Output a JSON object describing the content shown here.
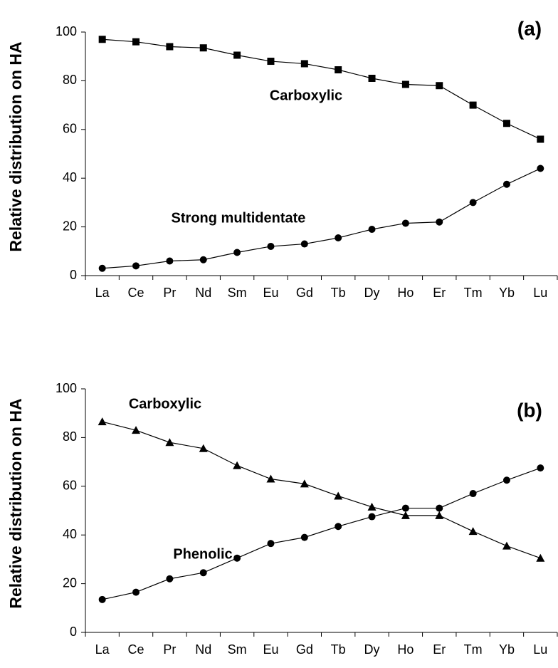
{
  "chart_data": [
    {
      "type": "line",
      "panel_label": "(a)",
      "ylabel": "Relative distribution on HA",
      "categories": [
        "La",
        "Ce",
        "Pr",
        "Nd",
        "Sm",
        "Eu",
        "Gd",
        "Tb",
        "Dy",
        "Ho",
        "Er",
        "Tm",
        "Yb",
        "Lu"
      ],
      "ylim": [
        0,
        100
      ],
      "yticks": [
        0,
        20,
        40,
        60,
        80,
        100
      ],
      "series": [
        {
          "name": "Carboxylic",
          "color": "#000000",
          "marker": "square",
          "values": [
            97,
            96,
            94,
            93.5,
            90.5,
            88,
            87,
            84.5,
            81,
            78.5,
            78,
            70,
            62.5,
            56
          ]
        },
        {
          "name": "Strong multidentate",
          "color": "#000000",
          "marker": "circle",
          "values": [
            3,
            4,
            6,
            6.5,
            9.5,
            12,
            13,
            15.5,
            19,
            21.5,
            22,
            30,
            37.5,
            44
          ]
        }
      ]
    },
    {
      "type": "line",
      "panel_label": "(b)",
      "ylabel": "Relative distribution on HA",
      "categories": [
        "La",
        "Ce",
        "Pr",
        "Nd",
        "Sm",
        "Eu",
        "Gd",
        "Tb",
        "Dy",
        "Ho",
        "Er",
        "Tm",
        "Yb",
        "Lu"
      ],
      "ylim": [
        0,
        100
      ],
      "yticks": [
        0,
        20,
        40,
        60,
        80,
        100
      ],
      "series": [
        {
          "name": "Carboxylic",
          "color": "#000000",
          "marker": "triangle",
          "values": [
            86.5,
            83,
            78,
            75.5,
            68.5,
            63,
            61,
            56,
            51.5,
            48,
            48,
            41.5,
            35.5,
            30.5
          ]
        },
        {
          "name": "Phenolic",
          "color": "#000000",
          "marker": "circle",
          "values": [
            13.5,
            16.5,
            22,
            24.5,
            30.5,
            36.5,
            39,
            43.5,
            47.5,
            51,
            51,
            57,
            62.5,
            67.5
          ]
        }
      ]
    }
  ]
}
